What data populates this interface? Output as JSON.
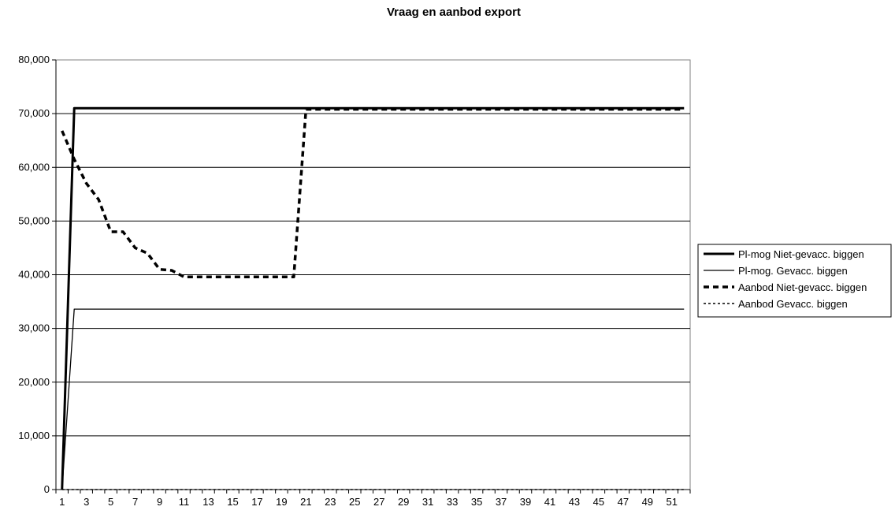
{
  "chart_data": {
    "type": "line",
    "title": "Vraag en aanbod export",
    "xlabel": "",
    "ylabel": "",
    "ylim": [
      0,
      80000
    ],
    "yticks": [
      0,
      10000,
      20000,
      30000,
      40000,
      50000,
      60000,
      70000,
      80000
    ],
    "ytick_labels": [
      "0",
      "10,000",
      "20,000",
      "30,000",
      "40,000",
      "50,000",
      "60,000",
      "70,000",
      "80,000"
    ],
    "x": [
      1,
      2,
      3,
      4,
      5,
      6,
      7,
      8,
      9,
      10,
      11,
      12,
      13,
      14,
      15,
      16,
      17,
      18,
      19,
      20,
      21,
      22,
      23,
      24,
      25,
      26,
      27,
      28,
      29,
      30,
      31,
      32,
      33,
      34,
      35,
      36,
      37,
      38,
      39,
      40,
      41,
      42,
      43,
      44,
      45,
      46,
      47,
      48,
      49,
      50,
      51,
      52
    ],
    "xtick_labels": [
      "1",
      "3",
      "5",
      "7",
      "9",
      "11",
      "13",
      "15",
      "17",
      "19",
      "21",
      "23",
      "25",
      "27",
      "29",
      "31",
      "33",
      "35",
      "37",
      "39",
      "41",
      "43",
      "45",
      "47",
      "49",
      "51"
    ],
    "grid": "horizontal",
    "legend_position": "right",
    "series": [
      {
        "name": "Pl-mog Niet-gevacc. biggen",
        "style": "solid-thick",
        "values": [
          0,
          71000,
          71000,
          71000,
          71000,
          71000,
          71000,
          71000,
          71000,
          71000,
          71000,
          71000,
          71000,
          71000,
          71000,
          71000,
          71000,
          71000,
          71000,
          71000,
          71000,
          71000,
          71000,
          71000,
          71000,
          71000,
          71000,
          71000,
          71000,
          71000,
          71000,
          71000,
          71000,
          71000,
          71000,
          71000,
          71000,
          71000,
          71000,
          71000,
          71000,
          71000,
          71000,
          71000,
          71000,
          71000,
          71000,
          71000,
          71000,
          71000,
          71000,
          71000
        ]
      },
      {
        "name": "Pl-mog. Gevacc. biggen",
        "style": "solid-thin",
        "values": [
          0,
          33600,
          33600,
          33600,
          33600,
          33600,
          33600,
          33600,
          33600,
          33600,
          33600,
          33600,
          33600,
          33600,
          33600,
          33600,
          33600,
          33600,
          33600,
          33600,
          33600,
          33600,
          33600,
          33600,
          33600,
          33600,
          33600,
          33600,
          33600,
          33600,
          33600,
          33600,
          33600,
          33600,
          33600,
          33600,
          33600,
          33600,
          33600,
          33600,
          33600,
          33600,
          33600,
          33600,
          33600,
          33600,
          33600,
          33600,
          33600,
          33600,
          33600,
          33600
        ]
      },
      {
        "name": "Aanbod Niet-gevacc. biggen",
        "style": "dashed-thick",
        "values": [
          66800,
          61500,
          57000,
          54000,
          48000,
          48000,
          45000,
          44000,
          41000,
          40800,
          39600,
          39600,
          39600,
          39600,
          39600,
          39600,
          39600,
          39600,
          39600,
          39600,
          70800,
          70800,
          70800,
          70800,
          70800,
          70800,
          70800,
          70800,
          70800,
          70800,
          70800,
          70800,
          70800,
          70800,
          70800,
          70800,
          70800,
          70800,
          70800,
          70800,
          70800,
          70800,
          70800,
          70800,
          70800,
          70800,
          70800,
          70800,
          70800,
          70800,
          70800,
          70800
        ]
      },
      {
        "name": "Aanbod Gevacc. biggen",
        "style": "dotted-thin",
        "values": [
          0,
          0,
          0,
          0,
          0,
          0,
          0,
          0,
          0,
          0,
          0,
          0,
          0,
          0,
          0,
          0,
          0,
          0,
          0,
          0,
          0,
          0,
          0,
          0,
          0,
          0,
          0,
          0,
          0,
          0,
          0,
          0,
          0,
          0,
          0,
          0,
          0,
          0,
          0,
          0,
          0,
          0,
          0,
          0,
          0,
          0,
          0,
          0,
          0,
          0,
          0,
          0
        ]
      }
    ]
  }
}
